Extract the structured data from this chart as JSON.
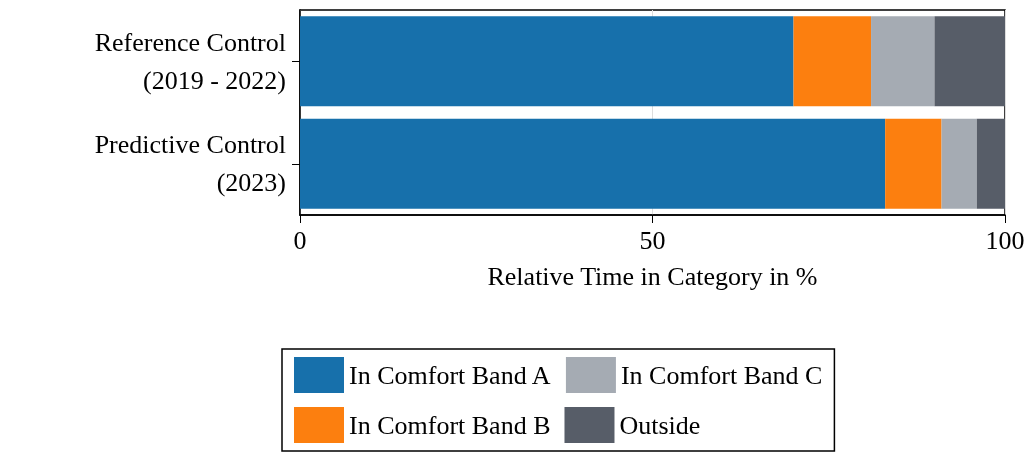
{
  "chart_data": {
    "type": "bar",
    "orientation": "horizontal",
    "stacked": true,
    "categories": [
      "Reference Control\n(2019 - 2022)",
      "Predictive Control\n(2023)"
    ],
    "series": [
      {
        "name": "In Comfort Band A",
        "color": "#1770ab",
        "values": [
          70,
          83
        ]
      },
      {
        "name": "In Comfort Band B",
        "color": "#fc7f0f",
        "values": [
          11,
          8
        ]
      },
      {
        "name": "In Comfort Band C",
        "color": "#a5abb3",
        "values": [
          9,
          5
        ]
      },
      {
        "name": "Outside",
        "color": "#575d68",
        "values": [
          10,
          4
        ]
      }
    ],
    "xlabel": "Relative Time in Category in %",
    "xlim": [
      0,
      100
    ],
    "xticks": [
      0,
      50,
      100
    ],
    "grid": "x",
    "legend": "bottom"
  }
}
